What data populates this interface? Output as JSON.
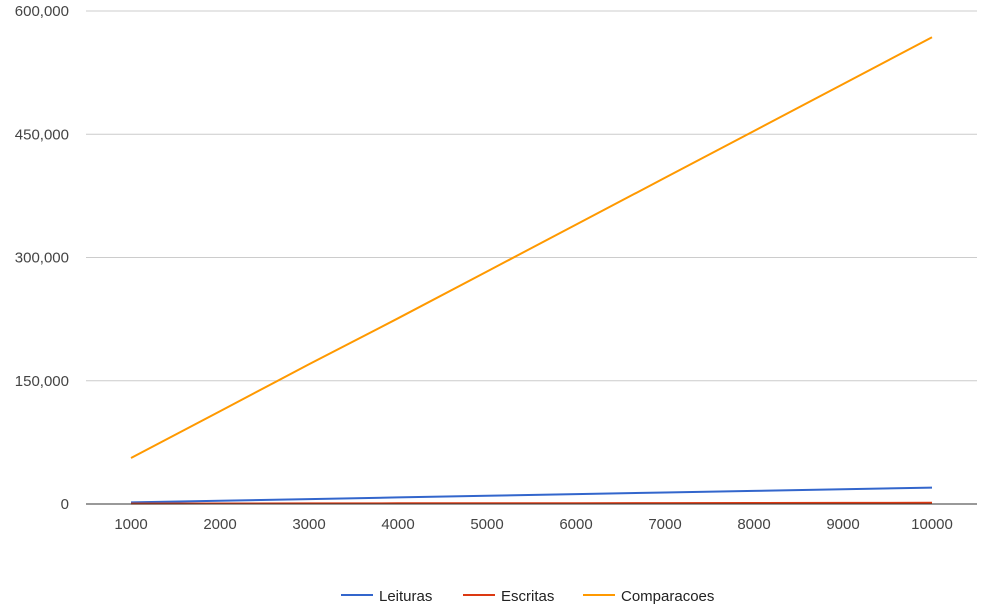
{
  "chart_data": {
    "type": "line",
    "title": "",
    "xlabel": "",
    "ylabel": "",
    "categories": [
      "1000",
      "2000",
      "3000",
      "4000",
      "5000",
      "6000",
      "7000",
      "8000",
      "9000",
      "10000"
    ],
    "y_ticks": [
      0,
      150000,
      300000,
      450000,
      600000
    ],
    "y_tick_labels": [
      "0",
      "150,000",
      "300,000",
      "450,000",
      "600,000"
    ],
    "ylim": [
      0,
      600000
    ],
    "grid": true,
    "legend_position": "bottom",
    "series": [
      {
        "name": "Leituras",
        "color": "#3366cc",
        "values": [
          2000,
          4000,
          6000,
          8000,
          10000,
          12000,
          14000,
          16000,
          18000,
          20000
        ]
      },
      {
        "name": "Escritas",
        "color": "#dc3912",
        "values": [
          500,
          600,
          700,
          800,
          900,
          1000,
          1100,
          1200,
          1300,
          1400
        ]
      },
      {
        "name": "Comparacoes",
        "color": "#ff9900",
        "values": [
          56000,
          113000,
          170000,
          226000,
          283000,
          340000,
          397000,
          454000,
          511000,
          568000
        ]
      }
    ]
  }
}
